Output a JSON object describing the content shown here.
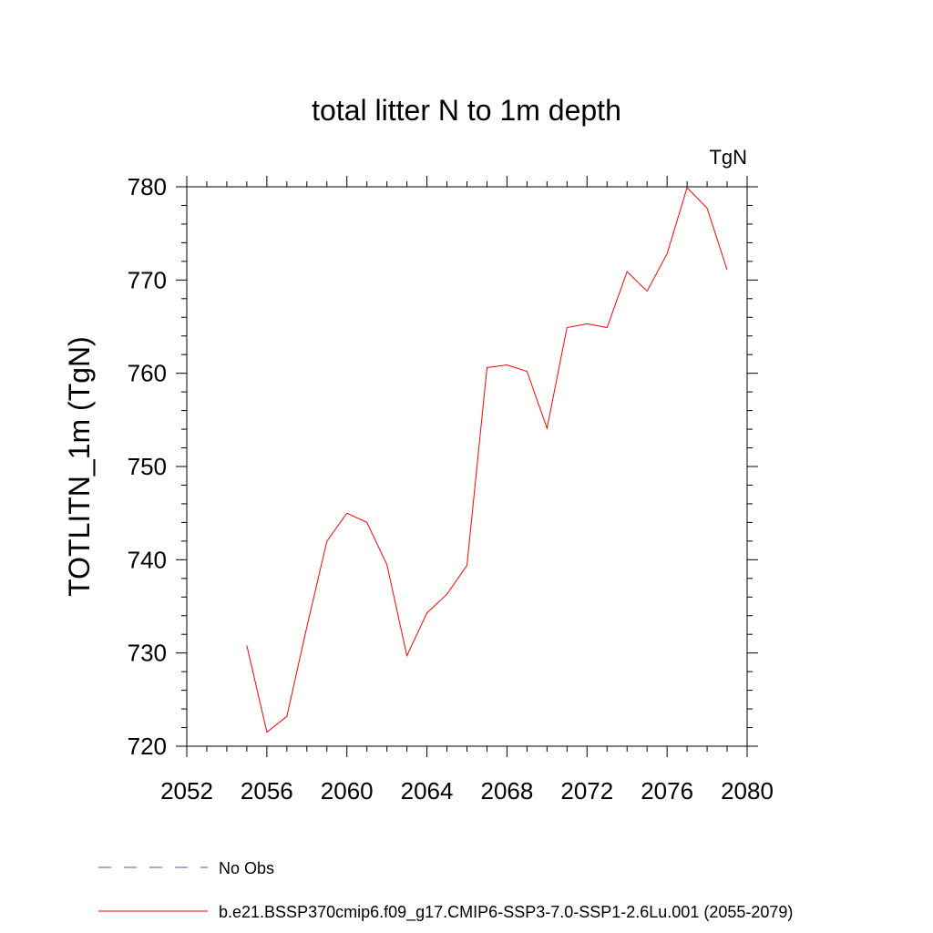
{
  "chart_data": {
    "type": "line",
    "title": "total litter N to 1m depth",
    "units": "TgN",
    "ylabel": "TOTLITN_1m  (TgN)",
    "xlabel": "",
    "xlim": [
      2052,
      2080
    ],
    "ylim": [
      720,
      780
    ],
    "xticks": [
      2052,
      2056,
      2060,
      2064,
      2068,
      2072,
      2076,
      2080
    ],
    "yticks": [
      720,
      730,
      740,
      750,
      760,
      770,
      780
    ],
    "grid": false,
    "legend_position": "bottom",
    "series": [
      {
        "name": "b.e21.BSSP370cmip6.f09_g17.CMIP6-SSP3-7.0-SSP1-2.6Lu.001 (2055-2079)",
        "color": "#ff0000",
        "x": [
          2055,
          2056,
          2057,
          2058,
          2059,
          2060,
          2061,
          2062,
          2063,
          2064,
          2065,
          2066,
          2067,
          2068,
          2069,
          2070,
          2071,
          2072,
          2073,
          2074,
          2075,
          2076,
          2077,
          2078,
          2079
        ],
        "y": [
          730.8,
          721.5,
          723.2,
          732.8,
          742.0,
          745.0,
          744.0,
          739.5,
          729.7,
          734.3,
          736.3,
          739.4,
          760.6,
          760.9,
          760.2,
          754.1,
          764.9,
          765.3,
          764.9,
          770.9,
          768.8,
          772.8,
          779.9,
          777.7,
          771.1
        ]
      }
    ],
    "legend": [
      {
        "label": "No Obs",
        "color": "#5a4fb0",
        "dash": "dashed"
      },
      {
        "label": "b.e21.BSSP370cmip6.f09_g17.CMIP6-SSP3-7.0-SSP1-2.6Lu.001 (2055-2079)",
        "color": "#ff0000",
        "dash": "solid"
      }
    ]
  }
}
